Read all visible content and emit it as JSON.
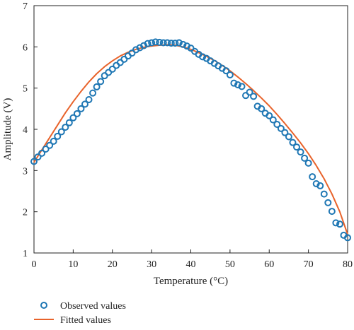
{
  "chart_data": {
    "type": "scatter",
    "title": "",
    "xlabel": "Temperature (°C)",
    "ylabel": "Amplitude (V)",
    "xlim": [
      0,
      80
    ],
    "ylim": [
      1,
      7
    ],
    "xticks": [
      0,
      10,
      20,
      30,
      40,
      50,
      60,
      70,
      80
    ],
    "yticks": [
      1,
      2,
      3,
      4,
      5,
      6,
      7
    ],
    "grid": false,
    "legend_position": "bottom-left",
    "series": [
      {
        "name": "Observed values",
        "style": "markers",
        "marker": "open-circle",
        "color": "#1f77b4",
        "x": [
          0,
          1,
          2,
          3,
          4,
          5,
          6,
          7,
          8,
          9,
          10,
          11,
          12,
          13,
          14,
          15,
          16,
          17,
          18,
          19,
          20,
          21,
          22,
          23,
          24,
          25,
          26,
          27,
          28,
          29,
          30,
          31,
          32,
          33,
          34,
          35,
          36,
          37,
          38,
          39,
          40,
          41,
          42,
          43,
          44,
          45,
          46,
          47,
          48,
          49,
          50,
          51,
          52,
          53,
          54,
          55,
          56,
          57,
          58,
          59,
          60,
          61,
          62,
          63,
          64,
          65,
          66,
          67,
          68,
          69,
          70,
          71,
          72,
          73,
          74,
          75,
          76,
          77,
          78,
          79,
          80
        ],
        "y": [
          3.22,
          3.33,
          3.42,
          3.52,
          3.61,
          3.71,
          3.83,
          3.94,
          4.05,
          4.16,
          4.28,
          4.38,
          4.5,
          4.61,
          4.72,
          4.88,
          5.03,
          5.16,
          5.3,
          5.38,
          5.46,
          5.55,
          5.62,
          5.7,
          5.78,
          5.85,
          5.93,
          5.98,
          6.03,
          6.08,
          6.1,
          6.12,
          6.11,
          6.1,
          6.1,
          6.09,
          6.09,
          6.1,
          6.06,
          6.02,
          5.97,
          5.89,
          5.82,
          5.76,
          5.72,
          5.66,
          5.6,
          5.54,
          5.48,
          5.42,
          5.32,
          5.12,
          5.08,
          5.04,
          4.82,
          4.9,
          4.8,
          4.56,
          4.5,
          4.39,
          4.33,
          4.23,
          4.12,
          4.02,
          3.92,
          3.82,
          3.68,
          3.57,
          3.45,
          3.3,
          3.18,
          2.85,
          2.68,
          2.63,
          2.43,
          2.22,
          2.01,
          1.73,
          1.7,
          1.43,
          1.37
        ]
      },
      {
        "name": "Fitted values",
        "style": "line",
        "color": "#e8632b",
        "x": [
          0,
          2,
          4,
          6,
          8,
          10,
          12,
          14,
          16,
          18,
          20,
          22,
          24,
          26,
          28,
          30,
          32,
          34,
          36,
          38,
          40,
          42,
          44,
          46,
          48,
          50,
          52,
          54,
          56,
          58,
          60,
          62,
          64,
          66,
          68,
          70,
          72,
          74,
          76,
          78,
          80
        ],
        "y": [
          3.2,
          3.5,
          3.8,
          4.1,
          4.4,
          4.67,
          4.92,
          5.15,
          5.35,
          5.52,
          5.66,
          5.78,
          5.87,
          5.94,
          5.99,
          6.02,
          6.04,
          6.05,
          6.04,
          6.0,
          5.94,
          5.86,
          5.77,
          5.67,
          5.55,
          5.42,
          5.27,
          5.11,
          4.94,
          4.76,
          4.57,
          4.36,
          4.14,
          3.91,
          3.67,
          3.41,
          3.12,
          2.8,
          2.43,
          2.0,
          1.45
        ]
      }
    ]
  },
  "colors": {
    "observed": "#1f77b4",
    "fitted": "#e8632b",
    "axis": "#222222"
  }
}
